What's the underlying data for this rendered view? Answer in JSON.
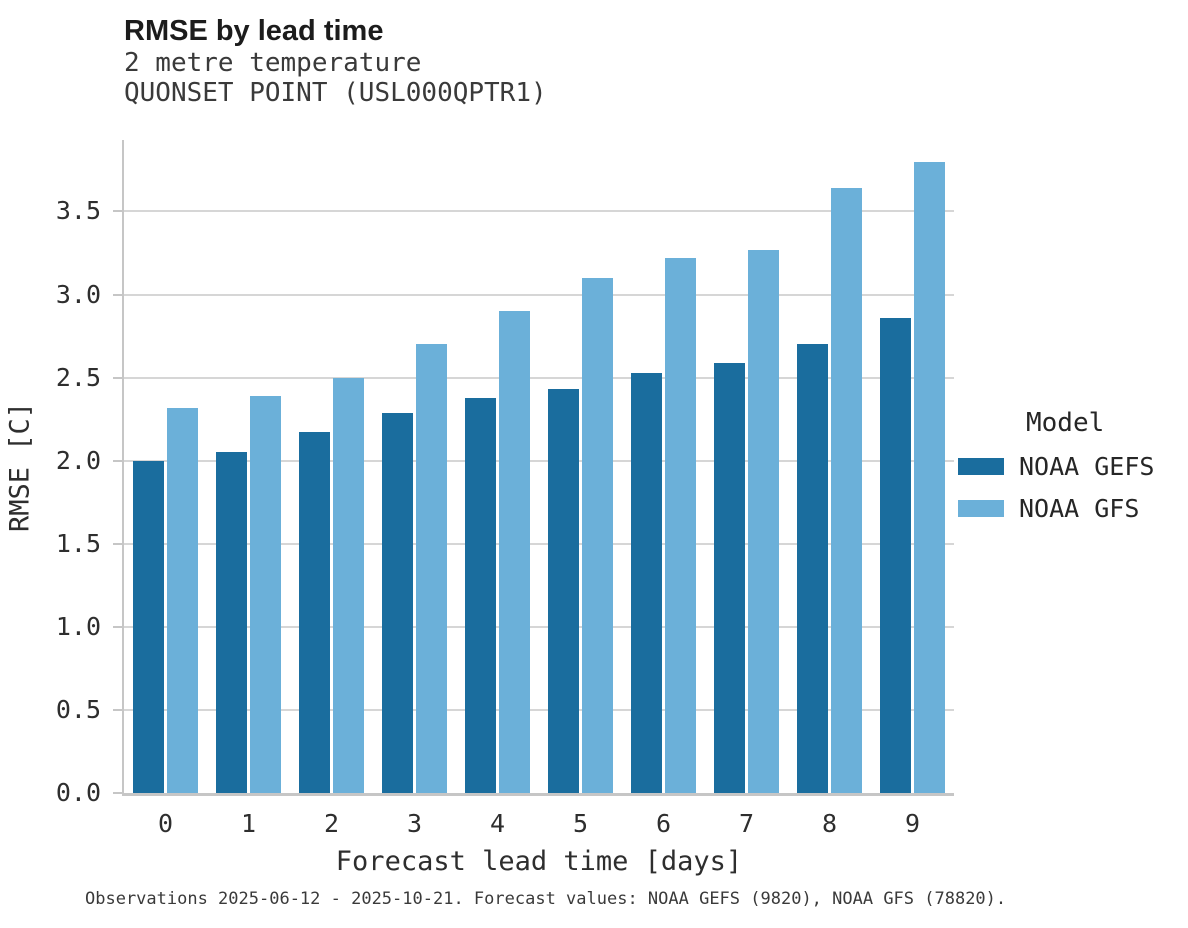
{
  "header": {
    "title": "RMSE by lead time",
    "subtitle_line1": "2 metre temperature",
    "subtitle_line2": "QUONSET POINT (USL000QPTR1)"
  },
  "chart_data": {
    "type": "bar",
    "title": "RMSE by lead time",
    "subtitle": "2 metre temperature",
    "station": "QUONSET POINT (USL000QPTR1)",
    "xlabel": "Forecast lead time [days]",
    "ylabel": "RMSE [C]",
    "categories": [
      "0",
      "1",
      "2",
      "3",
      "4",
      "5",
      "6",
      "7",
      "8",
      "9"
    ],
    "series": [
      {
        "name": "NOAA GEFS",
        "color": "#1a6d9e",
        "values": [
          2.0,
          2.05,
          2.17,
          2.29,
          2.38,
          2.43,
          2.53,
          2.59,
          2.7,
          2.86
        ]
      },
      {
        "name": "NOAA GFS",
        "color": "#6bb0d9",
        "values": [
          2.32,
          2.39,
          2.5,
          2.7,
          2.9,
          3.1,
          3.22,
          3.27,
          3.64,
          3.8
        ]
      }
    ],
    "ytick_labels": [
      "0.0",
      "0.5",
      "1.0",
      "1.5",
      "2.0",
      "2.5",
      "3.0",
      "3.5"
    ],
    "ylim": [
      0,
      3.93
    ],
    "grid": true,
    "legend_title": "Model",
    "legend_position": "right"
  },
  "footer": {
    "caption": "Observations 2025-06-12 - 2025-10-21. Forecast values: NOAA GEFS (9820), NOAA GFS (78820)."
  },
  "colors": {
    "noaa_gefs": "#1a6d9e",
    "noaa_gfs": "#6bb0d9",
    "gridline": "#d6d6d6",
    "spine": "#c6c6c6"
  }
}
